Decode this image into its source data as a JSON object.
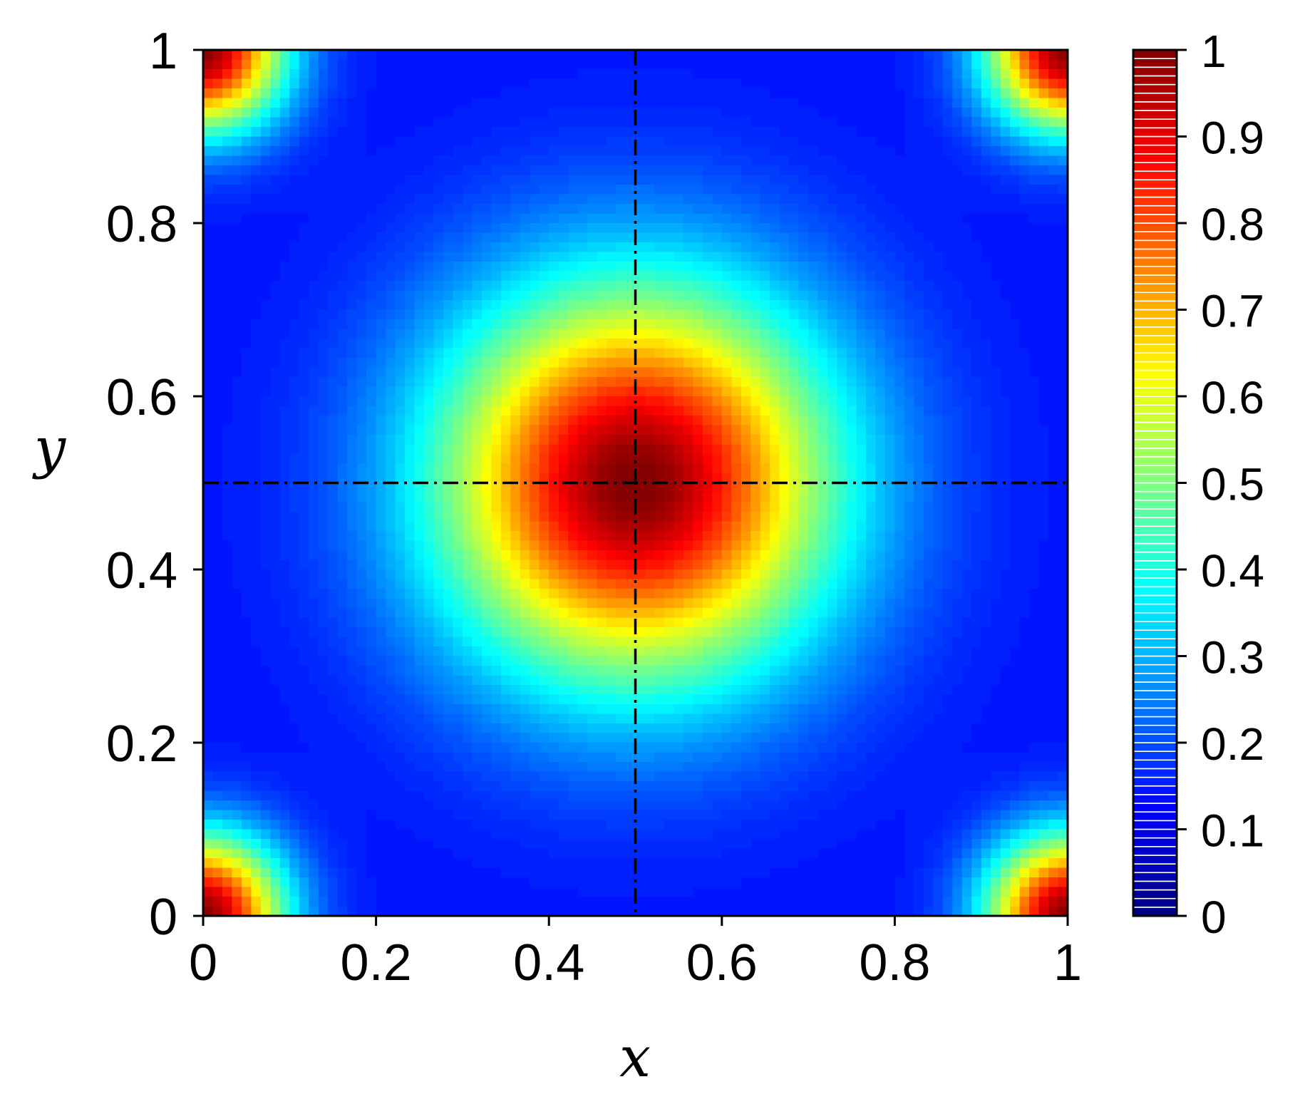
{
  "chart_data": {
    "type": "heatmap",
    "title": "",
    "xlabel": "x",
    "ylabel": "y",
    "xlim": [
      0,
      1
    ],
    "ylim": [
      0,
      1
    ],
    "x_ticks": [
      "0",
      "0.2",
      "0.4",
      "0.6",
      "0.8",
      "1"
    ],
    "x_tick_values": [
      0,
      0.2,
      0.4,
      0.6,
      0.8,
      1
    ],
    "y_ticks": [
      "0",
      "0.2",
      "0.4",
      "0.6",
      "0.8",
      "1"
    ],
    "y_tick_values": [
      0,
      0.2,
      0.4,
      0.6,
      0.8,
      1
    ],
    "colorbar": {
      "range": [
        0,
        1
      ],
      "ticks": [
        "0",
        "0.1",
        "0.2",
        "0.3",
        "0.4",
        "0.5",
        "0.6",
        "0.7",
        "0.8",
        "0.9",
        "1"
      ],
      "tick_values": [
        0,
        0.1,
        0.2,
        0.3,
        0.4,
        0.5,
        0.6,
        0.7,
        0.8,
        0.9,
        1
      ],
      "colormap": "jet",
      "levels": 100
    },
    "field": {
      "description_values": {
        "center": [
          0.5,
          0.5
        ],
        "center_value": 1.0,
        "corner_value": 1.0,
        "edge_mid_value": 0.15,
        "saddle_value": 0.42,
        "saddle_points": [
          [
            0.13,
            0.13
          ],
          [
            0.87,
            0.13
          ],
          [
            0.13,
            0.87
          ],
          [
            0.87,
            0.87
          ]
        ]
      }
    },
    "reference_lines": [
      {
        "orientation": "vertical",
        "x": 0.5,
        "style": "dash-dot",
        "color": "#000000"
      },
      {
        "orientation": "horizontal",
        "y": 0.5,
        "style": "dash-dot",
        "color": "#000000"
      }
    ],
    "grid": false,
    "legend": "none"
  }
}
